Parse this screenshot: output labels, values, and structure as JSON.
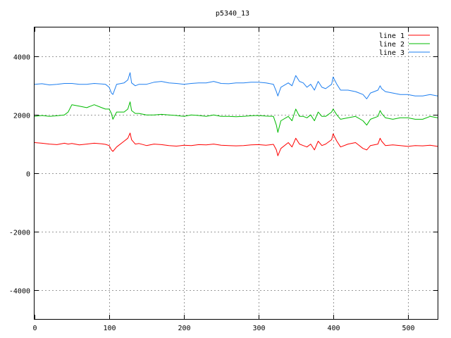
{
  "chart_data": {
    "type": "line",
    "title": "p5340_13",
    "xlabel": "",
    "ylabel": "",
    "xlim": [
      0,
      540
    ],
    "ylim": [
      -5000,
      5000
    ],
    "xticks": [
      "0",
      "100",
      "200",
      "300",
      "400",
      "500"
    ],
    "yticks": [
      "-4000",
      "-2000",
      "0",
      "2000",
      "4000"
    ],
    "xtick_values": [
      0,
      100,
      200,
      300,
      400,
      500
    ],
    "ytick_values": [
      -4000,
      -2000,
      0,
      2000,
      4000
    ],
    "grid": true,
    "legend_position": "top-right",
    "x": [
      0,
      10,
      20,
      30,
      40,
      45,
      50,
      60,
      70,
      80,
      90,
      95,
      100,
      103,
      105,
      110,
      120,
      125,
      128,
      130,
      135,
      140,
      150,
      160,
      170,
      180,
      190,
      200,
      210,
      220,
      230,
      240,
      250,
      260,
      270,
      280,
      290,
      300,
      310,
      320,
      324,
      326,
      330,
      340,
      345,
      350,
      355,
      360,
      365,
      370,
      375,
      380,
      385,
      390,
      398,
      400,
      405,
      410,
      420,
      430,
      440,
      445,
      450,
      460,
      463,
      465,
      470,
      480,
      490,
      500,
      510,
      520,
      530,
      540
    ],
    "series": [
      {
        "name": "line 1",
        "color": "#ff0000",
        "values": [
          1050,
          1030,
          1000,
          980,
          1030,
          1000,
          1020,
          970,
          1000,
          1030,
          1010,
          990,
          950,
          800,
          750,
          900,
          1100,
          1200,
          1380,
          1150,
          1000,
          1020,
          950,
          1000,
          980,
          950,
          930,
          960,
          950,
          980,
          970,
          1000,
          960,
          950,
          940,
          950,
          970,
          980,
          960,
          990,
          800,
          600,
          850,
          1050,
          900,
          1200,
          1000,
          950,
          900,
          1000,
          800,
          1100,
          950,
          1000,
          1150,
          1350,
          1100,
          900,
          1000,
          1050,
          850,
          800,
          950,
          1000,
          1200,
          1100,
          950,
          970,
          950,
          920,
          950,
          940,
          960,
          920
        ]
      },
      {
        "name": "line 2",
        "color": "#00bb00",
        "values": [
          1950,
          1980,
          1950,
          1970,
          2000,
          2100,
          2350,
          2300,
          2250,
          2350,
          2250,
          2200,
          2200,
          2050,
          1850,
          2100,
          2100,
          2200,
          2450,
          2150,
          2050,
          2050,
          2000,
          2000,
          2020,
          2000,
          1980,
          1950,
          2000,
          1980,
          1950,
          2000,
          1950,
          1950,
          1940,
          1950,
          1970,
          1980,
          1960,
          1950,
          1650,
          1400,
          1800,
          1950,
          1800,
          2200,
          1950,
          1950,
          1900,
          2000,
          1800,
          2100,
          1950,
          1950,
          2100,
          2200,
          2000,
          1850,
          1900,
          1950,
          1800,
          1650,
          1850,
          1950,
          2150,
          2050,
          1900,
          1850,
          1900,
          1900,
          1850,
          1850,
          1950,
          1900
        ]
      },
      {
        "name": "line 3",
        "color": "#1e7ff0",
        "values": [
          3050,
          3070,
          3030,
          3050,
          3080,
          3080,
          3080,
          3050,
          3050,
          3080,
          3060,
          3050,
          2950,
          2750,
          2700,
          3050,
          3100,
          3200,
          3450,
          3100,
          3000,
          3050,
          3050,
          3120,
          3150,
          3100,
          3080,
          3050,
          3080,
          3100,
          3100,
          3150,
          3080,
          3070,
          3100,
          3100,
          3120,
          3120,
          3100,
          3050,
          2800,
          2650,
          2950,
          3100,
          3000,
          3350,
          3150,
          3100,
          2950,
          3050,
          2850,
          3150,
          2950,
          2900,
          3050,
          3300,
          3050,
          2850,
          2850,
          2800,
          2700,
          2550,
          2750,
          2850,
          3000,
          2900,
          2800,
          2750,
          2700,
          2700,
          2650,
          2650,
          2700,
          2650
        ]
      }
    ]
  }
}
